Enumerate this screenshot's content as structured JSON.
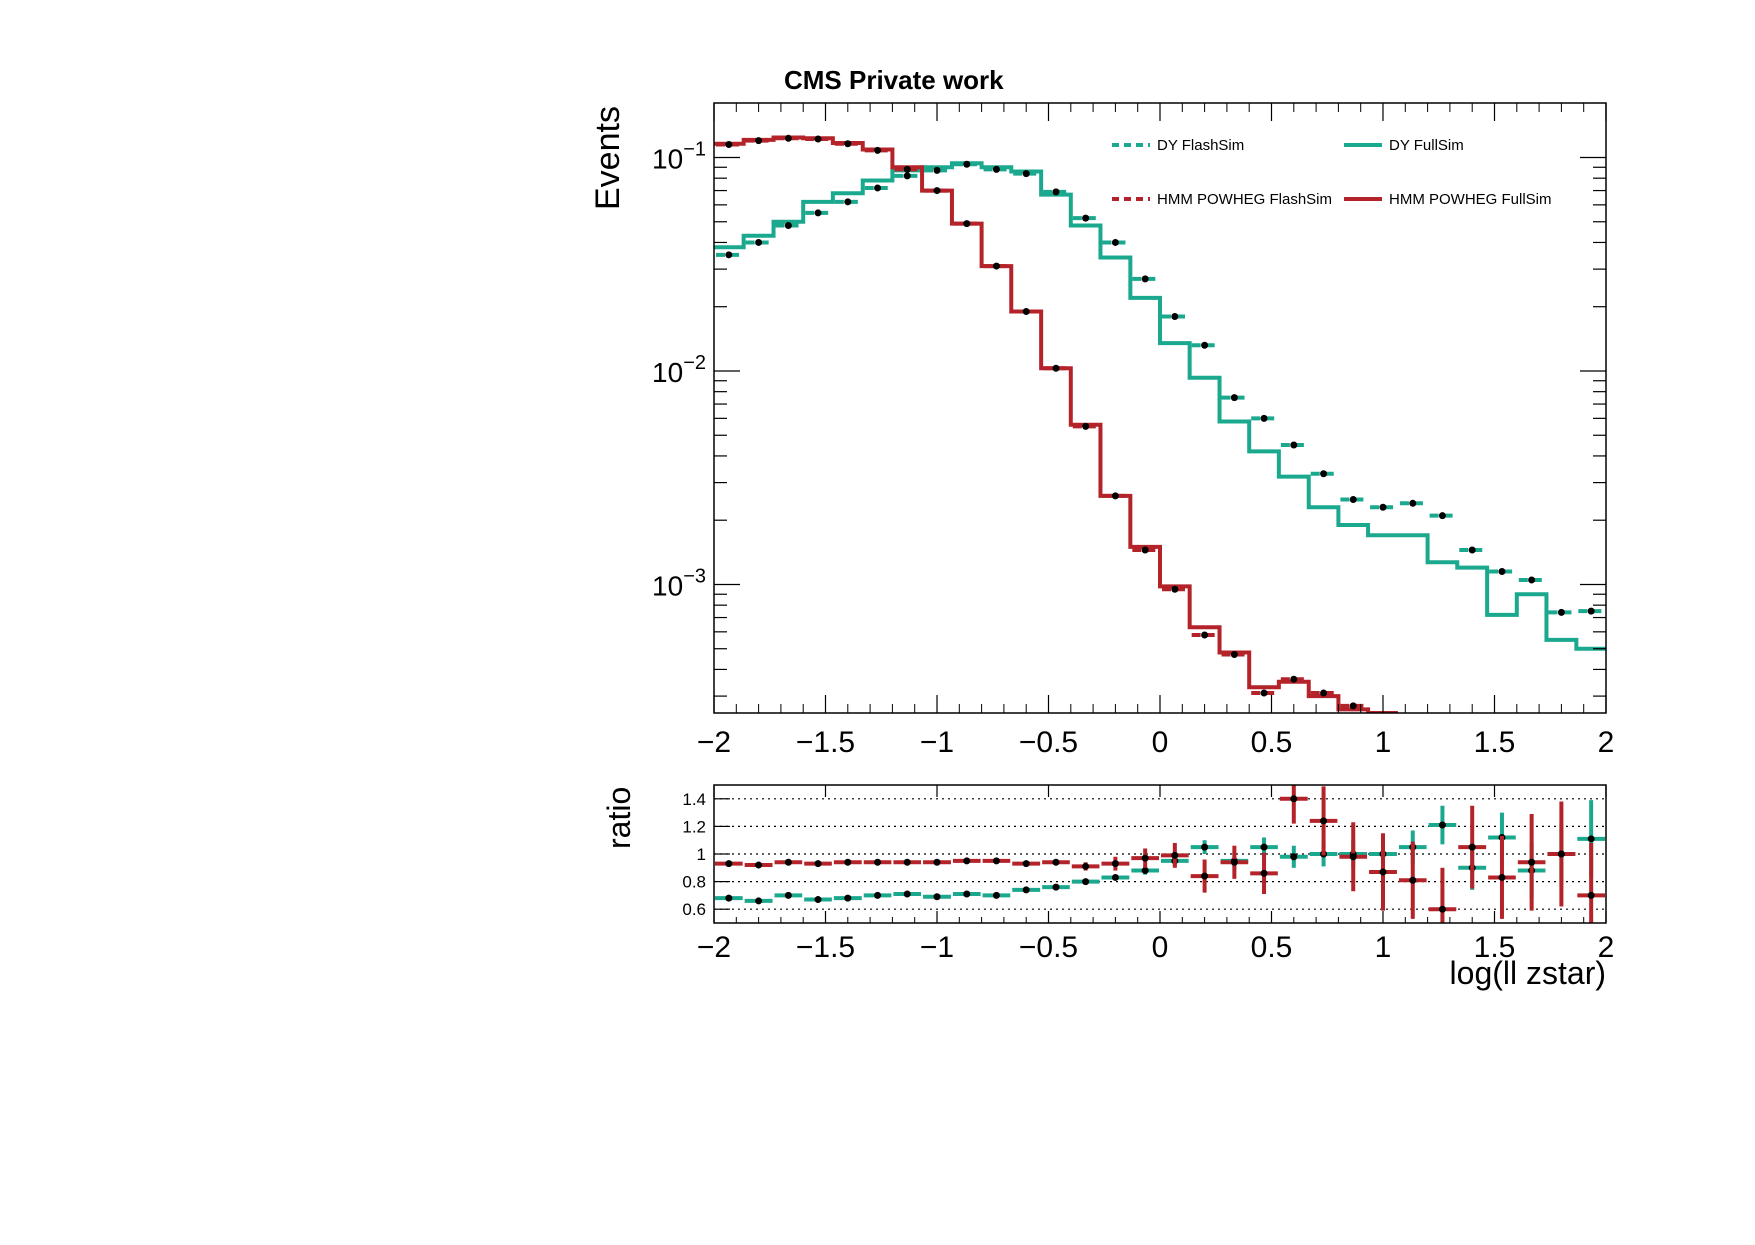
{
  "colors": {
    "dy": "#1aa88e",
    "hmm": "#b5232a",
    "point": "#000000",
    "frame": "#000000"
  },
  "chart_data": [
    {
      "type": "step",
      "scale": "log",
      "title": "CMS Private work",
      "ylabel": "Events",
      "xlim": [
        -2,
        2
      ],
      "ylim": [
        0.00025,
        0.18
      ],
      "xticks": [
        {
          "value": -2,
          "label": "−2"
        },
        {
          "value": -1.5,
          "label": "−1.5"
        },
        {
          "value": -1,
          "label": "−1"
        },
        {
          "value": -0.5,
          "label": "−0.5"
        },
        {
          "value": 0,
          "label": "0"
        },
        {
          "value": 0.5,
          "label": "0.5"
        },
        {
          "value": 1,
          "label": "1"
        },
        {
          "value": 1.5,
          "label": "1.5"
        },
        {
          "value": 2,
          "label": "2"
        }
      ],
      "yticks": [
        {
          "value": 0.1,
          "base": "10",
          "exp": "−1"
        },
        {
          "value": 0.01,
          "base": "10",
          "exp": "−2"
        },
        {
          "value": 0.001,
          "base": "10",
          "exp": "−3"
        }
      ],
      "bin_edges": [
        -2,
        -1.867,
        -1.733,
        -1.6,
        -1.467,
        -1.333,
        -1.2,
        -1.067,
        -0.933,
        -0.8,
        -0.667,
        -0.533,
        -0.4,
        -0.267,
        -0.133,
        0,
        0.133,
        0.267,
        0.4,
        0.533,
        0.667,
        0.8,
        0.933,
        1.067,
        1.2,
        1.333,
        1.467,
        1.6,
        1.733,
        1.867,
        2
      ],
      "legend": [
        {
          "label": "DY FlashSim",
          "series": "dy_flash",
          "style": "dashed"
        },
        {
          "label": "DY FullSim",
          "series": "dy_full",
          "style": "solid"
        },
        {
          "label": "HMM POWHEG FlashSim",
          "series": "hmm_flash",
          "style": "dashed"
        },
        {
          "label": "HMM POWHEG FullSim",
          "series": "hmm_full",
          "style": "solid"
        }
      ],
      "series": [
        {
          "name": "DY FlashSim",
          "key": "dy_flash",
          "color_key": "dy",
          "style": "dashed",
          "values": [
            0.035,
            0.04,
            0.048,
            0.055,
            0.062,
            0.072,
            0.082,
            0.087,
            0.093,
            0.088,
            0.084,
            0.069,
            0.052,
            0.04,
            0.027,
            0.018,
            0.0132,
            0.0075,
            0.006,
            0.0045,
            0.0033,
            0.0025,
            0.0023,
            0.0024,
            0.0021,
            0.00145,
            0.00115,
            0.00105,
            0.00074,
            0.00075
          ]
        },
        {
          "name": "DY FullSim",
          "key": "dy_full",
          "color_key": "dy",
          "style": "solid",
          "values": [
            0.038,
            0.043,
            0.05,
            0.062,
            0.068,
            0.078,
            0.087,
            0.09,
            0.094,
            0.09,
            0.086,
            0.067,
            0.048,
            0.034,
            0.022,
            0.0135,
            0.0093,
            0.0058,
            0.0042,
            0.0032,
            0.0023,
            0.0019,
            0.0017,
            0.0017,
            0.00127,
            0.0012,
            0.00072,
            0.0009,
            0.00055,
            0.0005
          ]
        },
        {
          "name": "HMM POWHEG FlashSim",
          "key": "hmm_flash",
          "color_key": "hmm",
          "style": "dashed",
          "values": [
            0.115,
            0.12,
            0.123,
            0.122,
            0.116,
            0.108,
            0.088,
            0.07,
            0.049,
            0.031,
            0.019,
            0.0103,
            0.0055,
            0.0026,
            0.00145,
            0.00095,
            0.00058,
            0.00047,
            0.00031,
            0.00036,
            0.00031,
            0.00027,
            0.00024
          ]
        },
        {
          "name": "HMM POWHEG FullSim",
          "key": "hmm_full",
          "color_key": "hmm",
          "style": "solid",
          "values": [
            0.116,
            0.121,
            0.124,
            0.123,
            0.117,
            0.109,
            0.09,
            0.07,
            0.049,
            0.031,
            0.019,
            0.0103,
            0.0056,
            0.0026,
            0.0015,
            0.00098,
            0.00063,
            0.00048,
            0.00033,
            0.00035,
            0.0003,
            0.00026,
            0.00025
          ]
        }
      ],
      "points": [
        {
          "key": "dy",
          "values": [
            0.035,
            0.04,
            0.048,
            0.055,
            0.062,
            0.072,
            0.082,
            0.087,
            0.093,
            0.088,
            0.084,
            0.069,
            0.052,
            0.04,
            0.027,
            0.018,
            0.0132,
            0.0075,
            0.006,
            0.0045,
            0.0033,
            0.0025,
            0.0023,
            0.0024,
            0.0021,
            0.00145,
            0.00115,
            0.00105,
            0.00074,
            0.00075
          ]
        },
        {
          "key": "hmm",
          "values": [
            0.115,
            0.12,
            0.123,
            0.122,
            0.116,
            0.108,
            0.088,
            0.07,
            0.049,
            0.031,
            0.019,
            0.0103,
            0.0055,
            0.0026,
            0.00145,
            0.00095,
            0.00058,
            0.00047,
            0.00031,
            0.00036,
            0.00031,
            0.00027,
            0.00024
          ]
        }
      ]
    },
    {
      "type": "ratio",
      "ylabel": "ratio",
      "xlabel": "log(ll zstar)",
      "xlim": [
        -2,
        2
      ],
      "ylim": [
        0.5,
        1.5
      ],
      "xticks": [
        {
          "value": -2,
          "label": "−2"
        },
        {
          "value": -1.5,
          "label": "−1.5"
        },
        {
          "value": -1,
          "label": "−1"
        },
        {
          "value": -0.5,
          "label": "−0.5"
        },
        {
          "value": 0,
          "label": "0"
        },
        {
          "value": 0.5,
          "label": "0.5"
        },
        {
          "value": 1,
          "label": "1"
        },
        {
          "value": 1.5,
          "label": "1.5"
        },
        {
          "value": 2,
          "label": "2"
        }
      ],
      "yticks": [
        {
          "value": 0.6,
          "label": "0.6"
        },
        {
          "value": 0.8,
          "label": "0.8"
        },
        {
          "value": 1,
          "label": "1"
        },
        {
          "value": 1.2,
          "label": "1.2"
        },
        {
          "value": 1.4,
          "label": "1.4"
        }
      ],
      "series": [
        {
          "name": "DY ratio",
          "key": "dy",
          "color_key": "dy",
          "values": [
            0.68,
            0.66,
            0.7,
            0.67,
            0.68,
            0.7,
            0.71,
            0.69,
            0.71,
            0.7,
            0.74,
            0.76,
            0.8,
            0.83,
            0.88,
            0.95,
            1.05,
            0.95,
            1.05,
            0.98,
            1.0,
            1.0,
            1.0,
            1.05,
            1.21,
            0.9,
            1.12,
            0.88,
            1.0,
            1.11
          ],
          "errors": [
            0.01,
            0.01,
            0.01,
            0.01,
            0.01,
            0.01,
            0.01,
            0.01,
            0.01,
            0.01,
            0.01,
            0.01,
            0.02,
            0.02,
            0.03,
            0.04,
            0.05,
            0.06,
            0.07,
            0.08,
            0.09,
            0.1,
            0.11,
            0.12,
            0.14,
            0.16,
            0.18,
            0.2,
            0.22,
            0.28
          ]
        },
        {
          "name": "HMM ratio",
          "key": "hmm",
          "color_key": "hmm",
          "values": [
            0.93,
            0.92,
            0.94,
            0.93,
            0.94,
            0.94,
            0.94,
            0.94,
            0.95,
            0.95,
            0.93,
            0.94,
            0.91,
            0.93,
            0.97,
            0.99,
            0.84,
            0.94,
            0.86,
            1.4,
            1.24,
            0.98,
            0.87,
            0.81,
            0.6,
            1.05,
            0.83,
            0.94,
            1.0,
            0.7
          ],
          "errors": [
            0.01,
            0.01,
            0.01,
            0.01,
            0.01,
            0.01,
            0.01,
            0.01,
            0.01,
            0.01,
            0.02,
            0.02,
            0.03,
            0.05,
            0.07,
            0.09,
            0.12,
            0.12,
            0.15,
            0.18,
            0.25,
            0.25,
            0.28,
            0.28,
            0.3,
            0.3,
            0.3,
            0.35,
            0.38,
            0.38
          ]
        }
      ]
    }
  ]
}
